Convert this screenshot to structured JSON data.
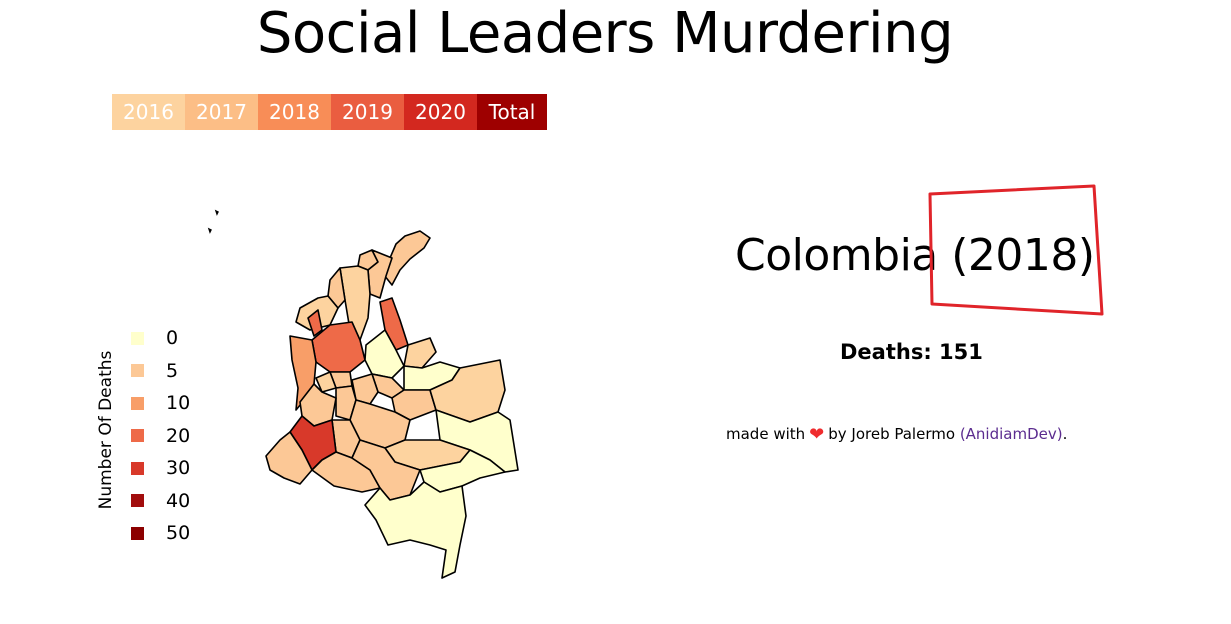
{
  "page": {
    "title": "Social Leaders Murdering"
  },
  "year_tabs": [
    {
      "label": "2016",
      "color": "#fdd39f"
    },
    {
      "label": "2017",
      "color": "#fcbe86"
    },
    {
      "label": "2018",
      "color": "#f88d57"
    },
    {
      "label": "2019",
      "color": "#ea5d40"
    },
    {
      "label": "2020",
      "color": "#d3281f"
    },
    {
      "label": "Total",
      "color": "#9e0000"
    }
  ],
  "legend": {
    "title": "Number Of Deaths",
    "items": [
      {
        "label": "0",
        "color": "#ffffcc"
      },
      {
        "label": "5",
        "color": "#fcc896"
      },
      {
        "label": "10",
        "color": "#f89e68"
      },
      {
        "label": "20",
        "color": "#ee6a48"
      },
      {
        "label": "30",
        "color": "#d8392a"
      },
      {
        "label": "40",
        "color": "#a20d0d"
      },
      {
        "label": "50",
        "color": "#8c0000"
      }
    ]
  },
  "map": {
    "name": "Colombia",
    "year": "2018"
  },
  "details": {
    "country": "Colombia",
    "year_label": "(2018)",
    "deaths_label": "Deaths:",
    "deaths_value": "151",
    "highlight_color": "#e0242a"
  },
  "credits": {
    "made_with": "made with",
    "heart_icon": "heart-icon",
    "by": "by Joreb Palermo",
    "link_text": "(AnidiamDev)",
    "end": "."
  }
}
